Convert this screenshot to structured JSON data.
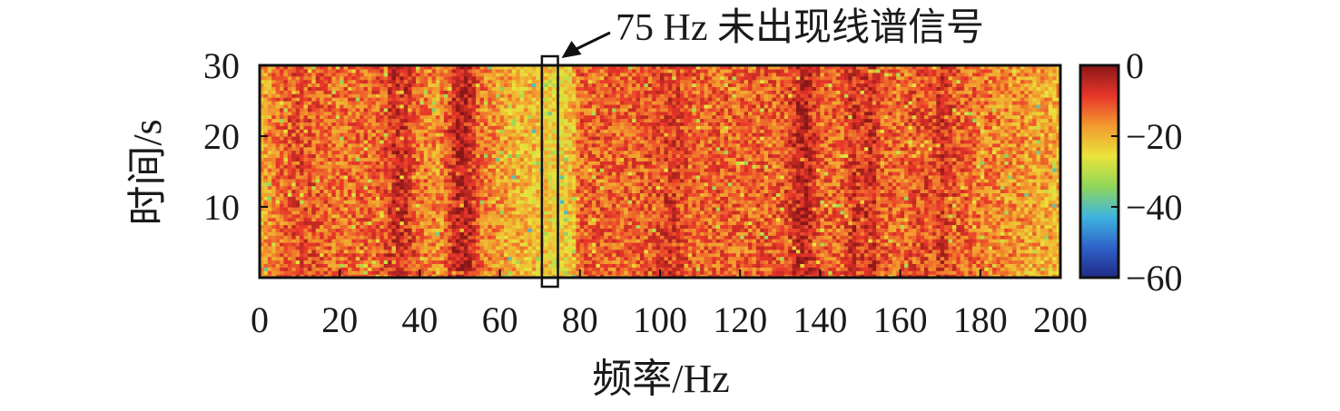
{
  "chart_data": {
    "type": "heatmap",
    "title": "",
    "xlabel": "频率/Hz",
    "ylabel": "时间/s",
    "xlim": [
      0,
      200
    ],
    "ylim": [
      0,
      30
    ],
    "x_ticks": [
      "0",
      "20",
      "40",
      "60",
      "80",
      "100",
      "120",
      "140",
      "160",
      "180",
      "200"
    ],
    "y_ticks": [
      "10",
      "20",
      "30"
    ],
    "colorbar": {
      "range": [
        -60,
        0
      ],
      "ticks": [
        "0",
        "−20",
        "−40",
        "−60"
      ],
      "colormap": [
        "#1f2a86",
        "#2f62c9",
        "#3fb4e0",
        "#8fd65a",
        "#e9e43a",
        "#f39a2e",
        "#e8352a",
        "#8a1717"
      ]
    },
    "column_levels_db": {
      "frequency": [
        0,
        5,
        10,
        15,
        20,
        25,
        30,
        33,
        36,
        40,
        45,
        48,
        50,
        52,
        55,
        60,
        65,
        70,
        72,
        75,
        78,
        80,
        85,
        90,
        95,
        100,
        102,
        105,
        110,
        115,
        120,
        125,
        130,
        133,
        135,
        137,
        140,
        145,
        148,
        150,
        153,
        155,
        160,
        165,
        168,
        170,
        175,
        180,
        185,
        190,
        195,
        200
      ],
      "level": [
        -20,
        -13,
        -10,
        -12,
        -14,
        -13,
        -12,
        -7,
        -6,
        -14,
        -17,
        -8,
        -3,
        -4,
        -14,
        -18,
        -20,
        -22,
        -23,
        -24,
        -22,
        -12,
        -12,
        -13,
        -12,
        -10,
        -8,
        -10,
        -13,
        -12,
        -13,
        -12,
        -12,
        -8,
        -3,
        -6,
        -12,
        -13,
        -7,
        -9,
        -6,
        -12,
        -13,
        -10,
        -11,
        -8,
        -12,
        -14,
        -16,
        -17,
        -18,
        -20
      ]
    },
    "annotation": {
      "text": "75 Hz 未出现线谱信号",
      "box_x_range": [
        70.5,
        74.5
      ],
      "box_y_range": [
        0,
        30
      ]
    }
  }
}
